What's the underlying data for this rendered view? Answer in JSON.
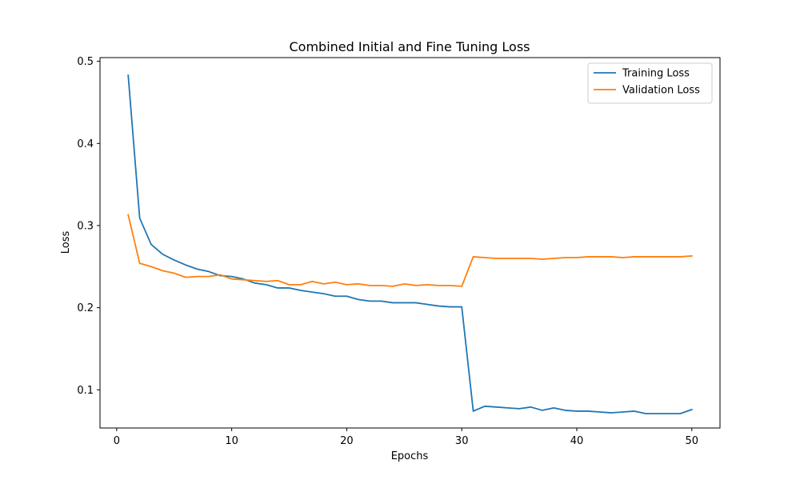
{
  "chart_data": {
    "type": "line",
    "title": "Combined Initial and Fine Tuning Loss",
    "xlabel": "Epochs",
    "ylabel": "Loss",
    "xlim": [
      -1.45,
      52.45
    ],
    "ylim": [
      0.0535,
      0.5045
    ],
    "xticks": [
      0,
      10,
      20,
      30,
      40,
      50
    ],
    "yticks": [
      0.1,
      0.2,
      0.3,
      0.4,
      0.5
    ],
    "grid": false,
    "legend_position": "top-right",
    "x": [
      1,
      2,
      3,
      4,
      5,
      6,
      7,
      8,
      9,
      10,
      11,
      12,
      13,
      14,
      15,
      16,
      17,
      18,
      19,
      20,
      21,
      22,
      23,
      24,
      25,
      26,
      27,
      28,
      29,
      30,
      31,
      32,
      33,
      34,
      35,
      36,
      37,
      38,
      39,
      40,
      41,
      42,
      43,
      44,
      45,
      46,
      47,
      48,
      49,
      50
    ],
    "series": [
      {
        "name": "Training Loss",
        "color": "#1f77b4",
        "values": [
          0.483,
          0.309,
          0.277,
          0.265,
          0.258,
          0.252,
          0.247,
          0.244,
          0.239,
          0.238,
          0.235,
          0.23,
          0.228,
          0.224,
          0.224,
          0.221,
          0.219,
          0.217,
          0.214,
          0.214,
          0.21,
          0.208,
          0.208,
          0.206,
          0.206,
          0.206,
          0.204,
          0.202,
          0.201,
          0.201,
          0.074,
          0.08,
          0.079,
          0.078,
          0.077,
          0.079,
          0.075,
          0.078,
          0.075,
          0.074,
          0.074,
          0.073,
          0.072,
          0.073,
          0.074,
          0.071,
          0.071,
          0.071,
          0.071,
          0.076
        ]
      },
      {
        "name": "Validation Loss",
        "color": "#ff7f0e",
        "values": [
          0.313,
          0.254,
          0.25,
          0.245,
          0.242,
          0.237,
          0.238,
          0.238,
          0.24,
          0.235,
          0.234,
          0.233,
          0.232,
          0.233,
          0.228,
          0.228,
          0.232,
          0.229,
          0.231,
          0.228,
          0.229,
          0.227,
          0.227,
          0.226,
          0.229,
          0.227,
          0.228,
          0.227,
          0.227,
          0.226,
          0.262,
          0.261,
          0.26,
          0.26,
          0.26,
          0.26,
          0.259,
          0.26,
          0.261,
          0.261,
          0.262,
          0.262,
          0.262,
          0.261,
          0.262,
          0.262,
          0.262,
          0.262,
          0.262,
          0.263
        ]
      }
    ]
  }
}
